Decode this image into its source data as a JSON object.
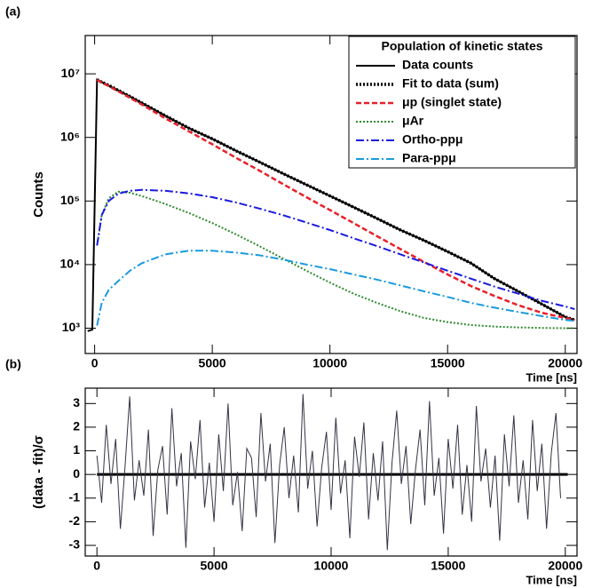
{
  "chart_data": [
    {
      "type": "line",
      "panel_label": "(a)",
      "xlabel": "Time [ns]",
      "ylabel": "Counts",
      "log_y": true,
      "xlim": [
        -400,
        20500
      ],
      "ylim": [
        400,
        40000000
      ],
      "xticks": [
        0,
        5000,
        10000,
        15000,
        20000
      ],
      "yticks": [
        {
          "value": 1000,
          "label": "10³"
        },
        {
          "value": 10000,
          "label": "10⁴"
        },
        {
          "value": 100000,
          "label": "10⁵"
        },
        {
          "value": 1000000,
          "label": "10⁶"
        },
        {
          "value": 10000000,
          "label": "10⁷"
        }
      ],
      "legend_title": "Population of kinetic states",
      "legend": "top-right",
      "x": [
        100,
        300,
        600,
        1000,
        1500,
        2000,
        3000,
        4000,
        5000,
        6000,
        7000,
        8000,
        9000,
        10000,
        11000,
        12000,
        13000,
        14000,
        15000,
        16000,
        17000,
        18000,
        19000,
        20000,
        20400
      ],
      "series": [
        {
          "name": "Data counts",
          "color": "#000000",
          "style": "solid",
          "width": 2,
          "x": [
            -300,
            -100,
            100,
            1000,
            2000,
            3000,
            4000,
            5000,
            6000,
            7000,
            8000,
            9000,
            10000,
            11000,
            12000,
            13000,
            14000,
            15000,
            16000,
            17000,
            18000,
            19000,
            20000,
            20400
          ],
          "values": [
            900,
            950,
            8100000,
            5500000,
            3500000,
            2200000,
            1400000,
            950000,
            620000,
            410000,
            270000,
            180000,
            120000,
            80000,
            53000,
            35000,
            24000,
            16000,
            10500,
            6000,
            3800,
            2400,
            1500,
            1350
          ]
        },
        {
          "name": "Fit to data (sum)",
          "color": "#000000",
          "style": "dotted",
          "width": 3.5,
          "values": [
            8100000,
            7400000,
            6600000,
            5500000,
            4400000,
            3500000,
            2200000,
            1400000,
            950000,
            620000,
            410000,
            270000,
            180000,
            120000,
            80000,
            53000,
            35000,
            24000,
            16000,
            10500,
            6000,
            3800,
            2400,
            1500,
            1350
          ]
        },
        {
          "name": "μp (singlet state)",
          "color": "#e8202a",
          "style": "dashed",
          "width": 2.5,
          "values": [
            8000000,
            7300000,
            6400000,
            5300000,
            4200000,
            3300000,
            2000000,
            1250000,
            780000,
            480000,
            300000,
            185000,
            115000,
            72000,
            45000,
            28000,
            17500,
            11000,
            7000,
            4600,
            3200,
            2300,
            1750,
            1450,
            1350
          ]
        },
        {
          "name": "μAr",
          "color": "#2f8a2f",
          "style": "dotted",
          "width": 2,
          "values": [
            20000,
            60000,
            110000,
            140000,
            135000,
            120000,
            90000,
            65000,
            45000,
            30000,
            19500,
            12500,
            8000,
            5200,
            3500,
            2500,
            1850,
            1450,
            1250,
            1120,
            1060,
            1030,
            1010,
            1000,
            1000
          ]
        },
        {
          "name": "Ortho-ppμ",
          "color": "#1a1adf",
          "style": "dashdot",
          "width": 2,
          "values": [
            20000,
            60000,
            100000,
            130000,
            145000,
            150000,
            145000,
            132000,
            115000,
            95000,
            76000,
            60000,
            46000,
            35000,
            26000,
            19500,
            14500,
            10800,
            8000,
            6000,
            4500,
            3500,
            2700,
            2200,
            2000
          ]
        },
        {
          "name": "Para-ppμ",
          "color": "#1a9be0",
          "style": "dashdot",
          "width": 2,
          "values": [
            1100,
            2500,
            4000,
            5500,
            8000,
            10500,
            14500,
            16500,
            16500,
            15500,
            14000,
            12000,
            10000,
            8500,
            7000,
            5800,
            4700,
            3800,
            3100,
            2500,
            2100,
            1800,
            1550,
            1350,
            1300
          ]
        }
      ]
    },
    {
      "type": "line",
      "panel_label": "(b)",
      "xlabel": "Time [ns]",
      "ylabel": "(data - fit)/σ",
      "log_y": false,
      "xlim": [
        -500,
        20500
      ],
      "ylim": [
        -3.45,
        3.65
      ],
      "xticks": [
        0,
        5000,
        10000,
        15000,
        20000
      ],
      "yticks": [
        -3,
        -2,
        -1,
        0,
        1,
        2,
        3
      ],
      "hline": 0,
      "x": [
        0,
        200,
        400,
        600,
        800,
        1000,
        1200,
        1400,
        1600,
        1800,
        2000,
        2200,
        2400,
        2600,
        2800,
        3000,
        3200,
        3400,
        3600,
        3800,
        4000,
        4200,
        4400,
        4600,
        4800,
        5000,
        5200,
        5400,
        5600,
        5800,
        6000,
        6200,
        6400,
        6600,
        6800,
        7000,
        7200,
        7400,
        7600,
        7800,
        8000,
        8200,
        8400,
        8600,
        8800,
        9000,
        9200,
        9400,
        9600,
        9800,
        10000,
        10200,
        10400,
        10600,
        10800,
        11000,
        11200,
        11400,
        11600,
        11800,
        12000,
        12200,
        12400,
        12600,
        12800,
        13000,
        13200,
        13400,
        13600,
        13800,
        14000,
        14200,
        14400,
        14600,
        14800,
        15000,
        15200,
        15400,
        15600,
        15800,
        16000,
        16200,
        16400,
        16600,
        16800,
        17000,
        17200,
        17400,
        17600,
        17800,
        18000,
        18200,
        18400,
        18600,
        18800,
        19000,
        19200,
        19400,
        19600,
        19800
      ],
      "series": [
        {
          "color": "#333344",
          "style": "solid",
          "width": 1,
          "values": [
            0.8,
            -1.2,
            2.1,
            -0.4,
            1.5,
            -2.3,
            0.3,
            3.3,
            -1.1,
            0.6,
            -0.9,
            1.9,
            -2.6,
            0.2,
            1.2,
            -1.7,
            2.8,
            -0.5,
            0.9,
            -3.1,
            1.4,
            -0.2,
            2.3,
            -1.4,
            0.5,
            -2.0,
            1.7,
            -0.7,
            3.0,
            -1.3,
            0.1,
            -2.4,
            1.1,
            0.7,
            -1.8,
            2.6,
            -0.3,
            1.3,
            -2.9,
            0.4,
            2.0,
            -1.0,
            0.8,
            -1.6,
            3.4,
            -0.6,
            1.0,
            -2.2,
            0.3,
            1.8,
            -1.5,
            2.4,
            -0.8,
            0.6,
            -2.7,
            1.6,
            -0.1,
            2.2,
            -1.9,
            0.9,
            -1.1,
            1.4,
            -3.2,
            0.5,
            2.7,
            -0.4,
            1.2,
            -2.1,
            0.2,
            1.9,
            -1.3,
            3.1,
            -0.9,
            0.7,
            -2.5,
            1.5,
            -0.6,
            2.1,
            -1.7,
            0.4,
            -2.0,
            2.9,
            -0.3,
            1.1,
            -1.4,
            0.8,
            -2.8,
            1.7,
            -0.5,
            2.5,
            -1.2,
            0.6,
            -1.9,
            2.3,
            -0.7,
            1.3,
            -2.3,
            0.9,
            2.6,
            -1.0
          ]
        }
      ]
    }
  ]
}
